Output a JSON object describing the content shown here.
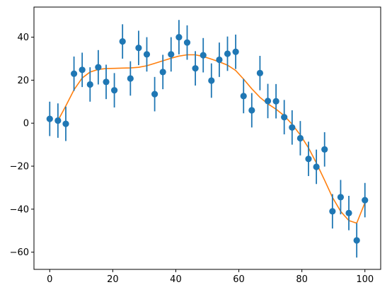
{
  "chart_data": {
    "type": "scatter",
    "title": "",
    "xlabel": "",
    "ylabel": "",
    "xlim": [
      -5,
      105
    ],
    "ylim": [
      -68,
      54
    ],
    "x_ticks": [
      0,
      20,
      40,
      60,
      80,
      100
    ],
    "y_ticks": [
      -60,
      -40,
      -20,
      0,
      20,
      40
    ],
    "x_tick_labels": [
      "0",
      "20",
      "40",
      "60",
      "80",
      "100"
    ],
    "y_tick_labels": [
      "−60",
      "−40",
      "−20",
      "0",
      "20",
      "40"
    ],
    "grid": false,
    "legend": "none",
    "series": [
      {
        "kind": "errorbar",
        "color": "#1f77b4",
        "error": 8,
        "points": [
          [
            0.0,
            2.0
          ],
          [
            2.6,
            1.2
          ],
          [
            5.1,
            -0.3
          ],
          [
            7.7,
            23.0
          ],
          [
            10.3,
            24.8
          ],
          [
            12.8,
            18.0
          ],
          [
            15.4,
            26.0
          ],
          [
            17.9,
            19.2
          ],
          [
            20.5,
            15.3
          ],
          [
            23.1,
            38.0
          ],
          [
            25.6,
            20.8
          ],
          [
            28.2,
            35.0
          ],
          [
            30.8,
            32.0
          ],
          [
            33.3,
            13.5
          ],
          [
            35.9,
            23.8
          ],
          [
            38.5,
            32.0
          ],
          [
            41.0,
            40.0
          ],
          [
            43.6,
            37.5
          ],
          [
            46.2,
            25.5
          ],
          [
            48.7,
            31.6
          ],
          [
            51.3,
            19.8
          ],
          [
            53.8,
            29.5
          ],
          [
            56.4,
            32.3
          ],
          [
            59.0,
            33.2
          ],
          [
            61.5,
            12.6
          ],
          [
            64.1,
            6.0
          ],
          [
            66.7,
            23.3
          ],
          [
            69.2,
            10.3
          ],
          [
            71.8,
            10.2
          ],
          [
            74.4,
            2.8
          ],
          [
            76.9,
            -2.0
          ],
          [
            79.5,
            -7.0
          ],
          [
            82.1,
            -16.6
          ],
          [
            84.6,
            -20.3
          ],
          [
            87.2,
            -12.2
          ],
          [
            89.7,
            -41.0
          ],
          [
            92.3,
            -34.4
          ],
          [
            94.9,
            -41.8
          ],
          [
            97.4,
            -54.5
          ],
          [
            100.0,
            -35.8
          ]
        ]
      },
      {
        "kind": "line",
        "color": "#ff7f0e",
        "points": [
          [
            2.6,
            1.2
          ],
          [
            5.1,
            8.0
          ],
          [
            7.7,
            15.5
          ],
          [
            10.3,
            21.0
          ],
          [
            12.8,
            23.8
          ],
          [
            15.4,
            25.0
          ],
          [
            17.9,
            25.4
          ],
          [
            20.5,
            25.5
          ],
          [
            23.1,
            25.6
          ],
          [
            25.6,
            25.7
          ],
          [
            28.2,
            26.0
          ],
          [
            30.8,
            26.7
          ],
          [
            33.3,
            27.8
          ],
          [
            35.9,
            29.0
          ],
          [
            38.5,
            30.2
          ],
          [
            41.0,
            31.2
          ],
          [
            43.6,
            31.8
          ],
          [
            46.2,
            31.8
          ],
          [
            48.7,
            31.0
          ],
          [
            51.3,
            29.8
          ],
          [
            53.8,
            28.5
          ],
          [
            56.4,
            27.0
          ],
          [
            59.0,
            24.5
          ],
          [
            61.5,
            20.5
          ],
          [
            64.1,
            16.0
          ],
          [
            66.7,
            12.0
          ],
          [
            69.2,
            9.0
          ],
          [
            71.8,
            6.5
          ],
          [
            74.4,
            3.5
          ],
          [
            76.9,
            -0.5
          ],
          [
            79.5,
            -5.5
          ],
          [
            82.1,
            -11.5
          ],
          [
            84.6,
            -18.5
          ],
          [
            87.2,
            -26.5
          ],
          [
            89.7,
            -34.5
          ],
          [
            92.3,
            -41.0
          ],
          [
            94.9,
            -45.3
          ],
          [
            97.4,
            -46.5
          ],
          [
            100.0,
            -37.0
          ]
        ]
      }
    ]
  }
}
